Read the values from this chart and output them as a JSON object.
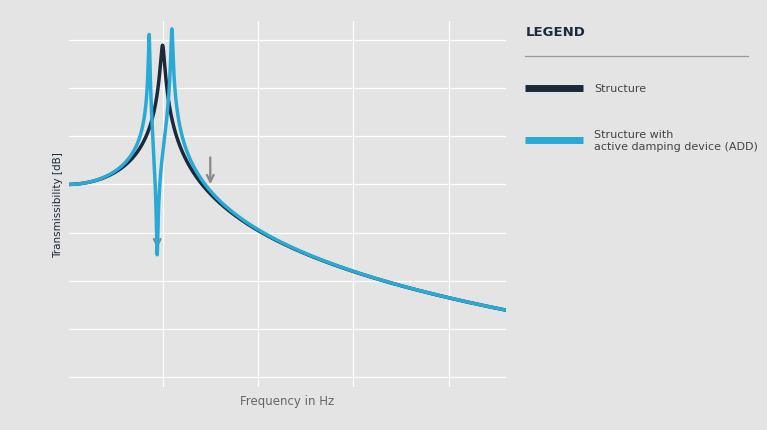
{
  "title": "",
  "xlabel": "Frequency in Hz",
  "ylabel": "Transmissibility [dB]",
  "bg_color": "#e4e4e4",
  "plot_bg_color": "#e4e4e4",
  "structure_color": "#1a2a3a",
  "add_color": "#29aad4",
  "arrow_color": "#888888",
  "legend_title": "LEGEND",
  "legend_label1": "Structure",
  "legend_label2": "Structure with\nactive damping device (ADD)",
  "grid_color": "#ffffff",
  "xlabel_color": "#666666",
  "ylabel_color": "#1a2a3a"
}
